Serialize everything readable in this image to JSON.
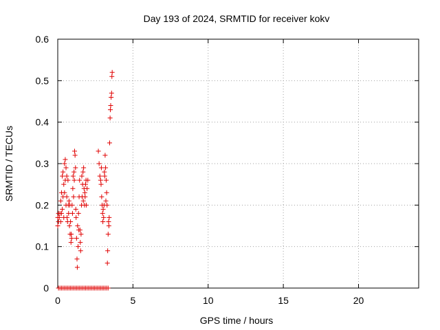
{
  "chart_data": {
    "type": "scatter",
    "title": "Day 193 of 2024, SRMTID for receiver kokv",
    "xlabel": "GPS time / hours",
    "ylabel": "SRMTID / TECUs",
    "xlim": [
      0,
      24
    ],
    "ylim": [
      0,
      0.6
    ],
    "x_ticks": [
      0,
      5,
      10,
      15,
      20
    ],
    "x_tick_labels": [
      "0",
      "5",
      "10",
      "15",
      "20"
    ],
    "y_ticks": [
      0,
      0.1,
      0.2,
      0.3,
      0.4,
      0.5,
      0.6
    ],
    "y_tick_labels": [
      "0",
      "0.1",
      "0.2",
      "0.3",
      "0.4",
      "0.5",
      "0.6"
    ],
    "grid": true,
    "marker": "plus",
    "marker_color": "#e00000",
    "series": [
      {
        "name": "SRMTID",
        "points": [
          [
            0.0,
            0.17
          ],
          [
            0.0,
            0.15
          ],
          [
            0.05,
            0.16
          ],
          [
            0.05,
            0.18
          ],
          [
            0.1,
            0.17
          ],
          [
            0.15,
            0.18
          ],
          [
            0.2,
            0.16
          ],
          [
            0.2,
            0.21
          ],
          [
            0.25,
            0.23
          ],
          [
            0.25,
            0.18
          ],
          [
            0.3,
            0.27
          ],
          [
            0.3,
            0.19
          ],
          [
            0.35,
            0.28
          ],
          [
            0.35,
            0.22
          ],
          [
            0.4,
            0.25
          ],
          [
            0.4,
            0.17
          ],
          [
            0.45,
            0.3
          ],
          [
            0.45,
            0.23
          ],
          [
            0.5,
            0.31
          ],
          [
            0.5,
            0.26
          ],
          [
            0.55,
            0.29
          ],
          [
            0.55,
            0.2
          ],
          [
            0.6,
            0.27
          ],
          [
            0.6,
            0.22
          ],
          [
            0.62,
            0.17
          ],
          [
            0.65,
            0.16
          ],
          [
            0.68,
            0.26
          ],
          [
            0.7,
            0.2
          ],
          [
            0.72,
            0.18
          ],
          [
            0.75,
            0.21
          ],
          [
            0.78,
            0.15
          ],
          [
            0.8,
            0.2
          ],
          [
            0.82,
            0.13
          ],
          [
            0.85,
            0.16
          ],
          [
            0.88,
            0.11
          ],
          [
            0.9,
            0.13
          ],
          [
            0.92,
            0.12
          ],
          [
            0.95,
            0.2
          ],
          [
            0.98,
            0.18
          ],
          [
            1.0,
            0.24
          ],
          [
            1.02,
            0.27
          ],
          [
            1.05,
            0.22
          ],
          [
            1.08,
            0.28
          ],
          [
            1.1,
            0.26
          ],
          [
            1.12,
            0.33
          ],
          [
            1.15,
            0.32
          ],
          [
            1.18,
            0.29
          ],
          [
            1.2,
            0.19
          ],
          [
            1.22,
            0.17
          ],
          [
            1.25,
            0.12
          ],
          [
            1.28,
            0.07
          ],
          [
            1.3,
            0.05
          ],
          [
            1.32,
            0.15
          ],
          [
            1.35,
            0.1
          ],
          [
            1.38,
            0.18
          ],
          [
            1.4,
            0.14
          ],
          [
            1.42,
            0.22
          ],
          [
            1.45,
            0.26
          ],
          [
            1.48,
            0.14
          ],
          [
            1.5,
            0.11
          ],
          [
            1.52,
            0.09
          ],
          [
            1.55,
            0.13
          ],
          [
            1.58,
            0.2
          ],
          [
            1.6,
            0.27
          ],
          [
            1.62,
            0.22
          ],
          [
            1.65,
            0.25
          ],
          [
            1.68,
            0.28
          ],
          [
            1.7,
            0.21
          ],
          [
            1.72,
            0.29
          ],
          [
            1.75,
            0.24
          ],
          [
            1.78,
            0.2
          ],
          [
            1.8,
            0.23
          ],
          [
            1.82,
            0.22
          ],
          [
            1.85,
            0.25
          ],
          [
            1.88,
            0.26
          ],
          [
            1.9,
            0.2
          ],
          [
            1.95,
            0.24
          ],
          [
            2.0,
            0.26
          ],
          [
            2.7,
            0.33
          ],
          [
            2.75,
            0.3
          ],
          [
            2.8,
            0.27
          ],
          [
            2.85,
            0.26
          ],
          [
            2.88,
            0.25
          ],
          [
            2.9,
            0.29
          ],
          [
            2.92,
            0.22
          ],
          [
            2.95,
            0.2
          ],
          [
            2.98,
            0.18
          ],
          [
            3.0,
            0.16
          ],
          [
            3.02,
            0.19
          ],
          [
            3.05,
            0.17
          ],
          [
            3.08,
            0.2
          ],
          [
            3.1,
            0.28
          ],
          [
            3.12,
            0.27
          ],
          [
            3.15,
            0.32
          ],
          [
            3.18,
            0.29
          ],
          [
            3.2,
            0.21
          ],
          [
            3.22,
            0.26
          ],
          [
            3.25,
            0.23
          ],
          [
            3.28,
            0.2
          ],
          [
            3.3,
            0.06
          ],
          [
            3.32,
            0.09
          ],
          [
            3.35,
            0.13
          ],
          [
            3.38,
            0.16
          ],
          [
            3.4,
            0.15
          ],
          [
            3.42,
            0.17
          ],
          [
            3.45,
            0.35
          ],
          [
            3.48,
            0.41
          ],
          [
            3.5,
            0.43
          ],
          [
            3.52,
            0.44
          ],
          [
            3.55,
            0.46
          ],
          [
            3.58,
            0.47
          ],
          [
            3.6,
            0.51
          ],
          [
            3.62,
            0.52
          ],
          [
            0.05,
            0.0
          ],
          [
            0.15,
            0.0
          ],
          [
            0.25,
            0.0
          ],
          [
            0.35,
            0.0
          ],
          [
            0.45,
            0.0
          ],
          [
            0.55,
            0.0
          ],
          [
            0.65,
            0.0
          ],
          [
            0.75,
            0.0
          ],
          [
            0.85,
            0.0
          ],
          [
            0.95,
            0.0
          ],
          [
            1.05,
            0.0
          ],
          [
            1.15,
            0.0
          ],
          [
            1.25,
            0.0
          ],
          [
            1.35,
            0.0
          ],
          [
            1.45,
            0.0
          ],
          [
            1.55,
            0.0
          ],
          [
            1.65,
            0.0
          ],
          [
            1.75,
            0.0
          ],
          [
            1.85,
            0.0
          ],
          [
            1.95,
            0.0
          ],
          [
            2.05,
            0.0
          ],
          [
            2.15,
            0.0
          ],
          [
            2.25,
            0.0
          ],
          [
            2.35,
            0.0
          ],
          [
            2.45,
            0.0
          ],
          [
            2.55,
            0.0
          ],
          [
            2.65,
            0.0
          ],
          [
            2.75,
            0.0
          ],
          [
            2.85,
            0.0
          ],
          [
            2.95,
            0.0
          ],
          [
            3.05,
            0.0
          ],
          [
            3.15,
            0.0
          ],
          [
            3.25,
            0.0
          ],
          [
            3.35,
            0.0
          ]
        ]
      }
    ]
  }
}
